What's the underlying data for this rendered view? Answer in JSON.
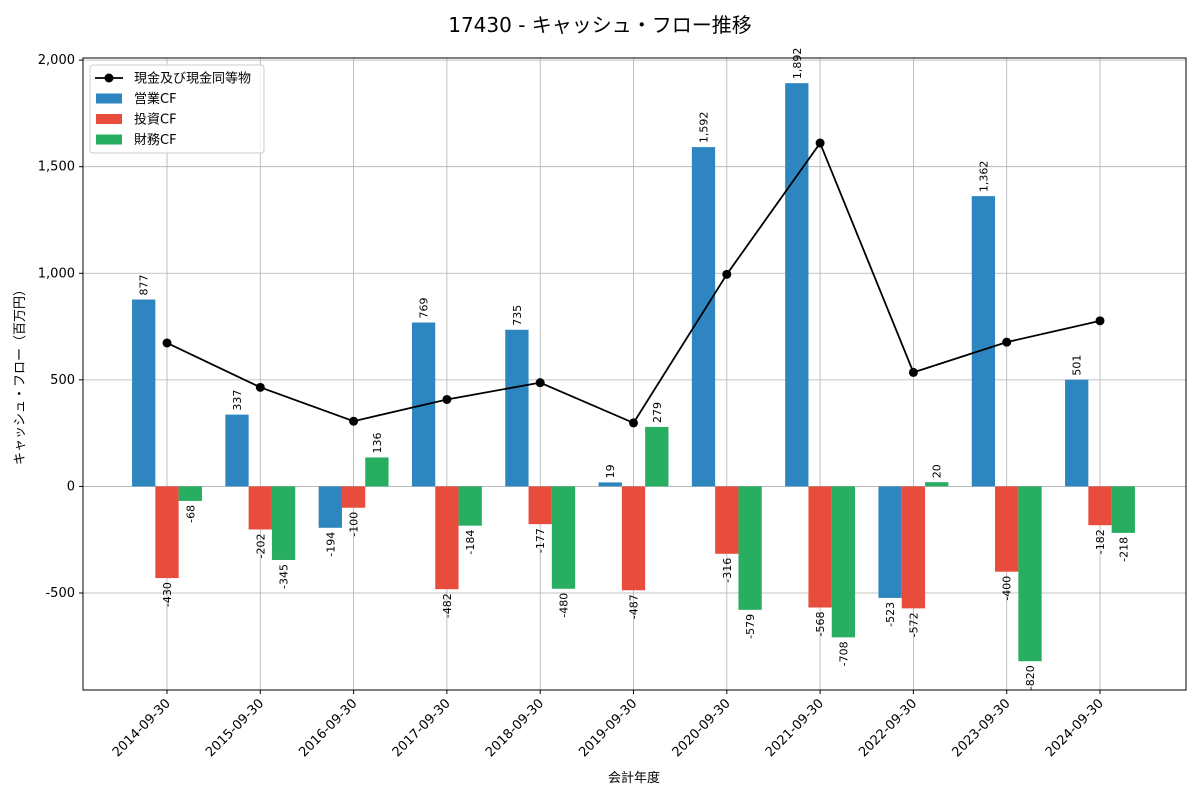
{
  "chart_data": {
    "type": "bar",
    "title": "17430 - キャッシュ・フロー推移",
    "xlabel": "会計年度",
    "ylabel": "キャッシュ・フロー（百万円）",
    "categories": [
      "2014-09-30",
      "2015-09-30",
      "2016-09-30",
      "2017-09-30",
      "2018-09-30",
      "2019-09-30",
      "2020-09-30",
      "2021-09-30",
      "2022-09-30",
      "2023-09-30",
      "2024-09-30"
    ],
    "ylim": [
      -955,
      2010
    ],
    "yticks": [
      -500,
      0,
      500,
      1000,
      1500,
      2000
    ],
    "ytick_labels": [
      "-500",
      "0",
      "500",
      "1,000",
      "1,500",
      "2,000"
    ],
    "grid": true,
    "legend_position": "top-left",
    "series": [
      {
        "name": "営業CF",
        "kind": "bar",
        "color": "#2e86c1",
        "values": [
          877,
          337,
          -194,
          769,
          735,
          19,
          1592,
          1892,
          -523,
          1362,
          501
        ],
        "labels": [
          "877",
          "337",
          "-194",
          "769",
          "735",
          "19",
          "1,592",
          "1,892",
          "-523",
          "1,362",
          "501"
        ]
      },
      {
        "name": "投資CF",
        "kind": "bar",
        "color": "#e74c3c",
        "values": [
          -430,
          -202,
          -100,
          -482,
          -177,
          -487,
          -316,
          -568,
          -572,
          -400,
          -182
        ],
        "labels": [
          "-430",
          "-202",
          "-100",
          "-482",
          "-177",
          "-487",
          "-316",
          "-568",
          "-572",
          "-400",
          "-182"
        ]
      },
      {
        "name": "財務CF",
        "kind": "bar",
        "color": "#27ae60",
        "values": [
          -68,
          -345,
          136,
          -184,
          -480,
          279,
          -579,
          -708,
          20,
          -820,
          -218
        ],
        "labels": [
          "-68",
          "-345",
          "136",
          "-184",
          "-480",
          "279",
          "-579",
          "-708",
          "20",
          "-820",
          "-218"
        ]
      },
      {
        "name": "現金及び現金同等物",
        "kind": "line",
        "color": "#000000",
        "values": [
          673,
          465,
          306,
          408,
          487,
          298,
          995,
          1611,
          535,
          677,
          777
        ]
      }
    ]
  }
}
